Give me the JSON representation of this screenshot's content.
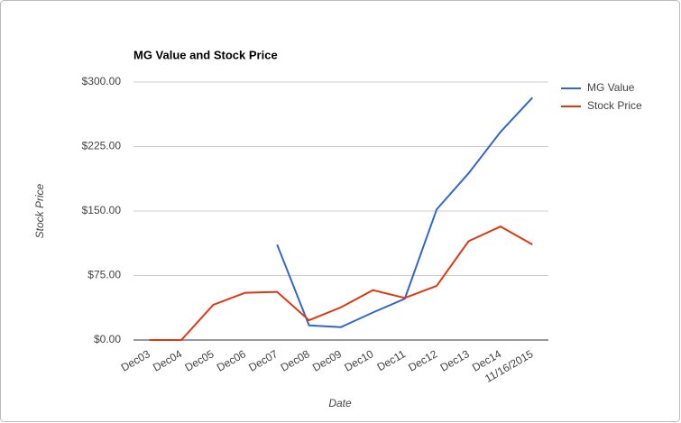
{
  "chart_data": {
    "type": "line",
    "title": "MG Value and Stock Price",
    "x_label": "Date",
    "y_label": "Stock Price",
    "categories": [
      "Dec03",
      "Dec04",
      "Dec05",
      "Dec06",
      "Dec07",
      "Dec08",
      "Dec09",
      "Dec10",
      "Dec11",
      "Dec12",
      "Dec13",
      "Dec14",
      "11/16/2015"
    ],
    "series": [
      {
        "name": "MG Value",
        "color": "#3366cc",
        "values": [
          null,
          null,
          null,
          null,
          111,
          17,
          15,
          32,
          48,
          152,
          194,
          242,
          282
        ]
      },
      {
        "name": "Stock Price",
        "color": "#dc3912",
        "values": [
          0,
          0,
          41,
          55,
          56,
          23,
          38,
          58,
          49,
          63,
          115,
          132,
          111
        ]
      }
    ],
    "ylim": [
      0,
      300
    ],
    "yticks": [
      {
        "value": 0,
        "label": "$0.00"
      },
      {
        "value": 75,
        "label": "$75.00"
      },
      {
        "value": 150,
        "label": "$150.00"
      },
      {
        "value": 225,
        "label": "$225.00"
      },
      {
        "value": 300,
        "label": "$300.00"
      }
    ],
    "grid": true,
    "legend": "right"
  }
}
